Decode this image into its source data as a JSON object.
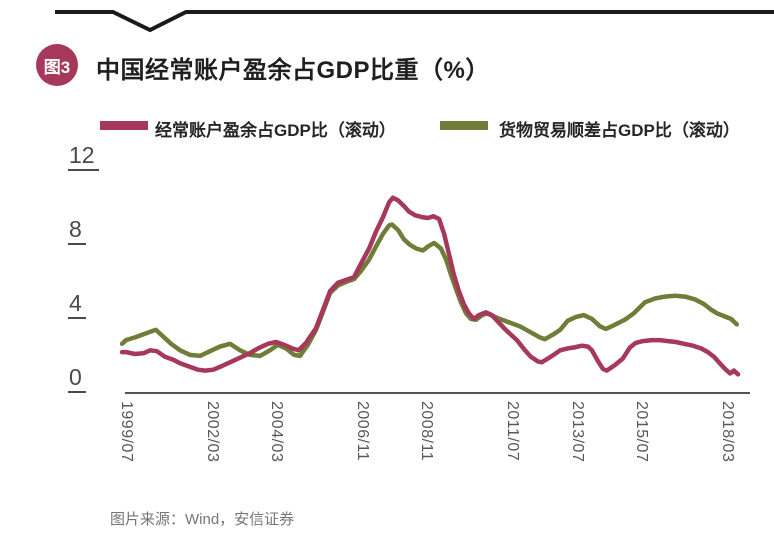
{
  "header": {
    "badge": "图3",
    "title": "中国经常账户盈余占GDP比重（%）"
  },
  "source": {
    "text": "图片来源：Wind，安信证券"
  },
  "colors": {
    "accent_crimson": "#a6395a",
    "accent_olive": "#6f7d39",
    "axis_black": "#1a1a1a",
    "tick_gray": "#4a4a4a"
  },
  "chart_data": {
    "type": "line",
    "title": "中国经常账户盈余占GDP比重（%）",
    "grid": false,
    "legend_position": "top",
    "ylim": [
      0,
      12
    ],
    "yticks": [
      0,
      4,
      8,
      12
    ],
    "xlim": [
      1999.42,
      2018.6
    ],
    "xticks": [
      {
        "label": "1999/07",
        "x": 1999.54
      },
      {
        "label": "2002/03",
        "x": 2002.21
      },
      {
        "label": "2004/03",
        "x": 2004.21
      },
      {
        "label": "2006/11",
        "x": 2006.87
      },
      {
        "label": "2008/11",
        "x": 2008.87
      },
      {
        "label": "2011/07",
        "x": 2011.54
      },
      {
        "label": "2013/07",
        "x": 2013.54
      },
      {
        "label": "2015/07",
        "x": 2015.54
      },
      {
        "label": "2018/03",
        "x": 2018.21
      }
    ],
    "series": [
      {
        "name": "经常账户盈余占GDP比（滚动）",
        "color": "#a6395a",
        "points": [
          [
            1999.42,
            2.1
          ],
          [
            1999.54,
            2.1
          ],
          [
            1999.82,
            2.0
          ],
          [
            2000.1,
            2.05
          ],
          [
            2000.29,
            2.2
          ],
          [
            2000.5,
            2.15
          ],
          [
            2000.75,
            1.85
          ],
          [
            2001.0,
            1.7
          ],
          [
            2001.22,
            1.5
          ],
          [
            2001.53,
            1.3
          ],
          [
            2001.78,
            1.15
          ],
          [
            2002.0,
            1.1
          ],
          [
            2002.25,
            1.15
          ],
          [
            2002.52,
            1.35
          ],
          [
            2002.77,
            1.55
          ],
          [
            2003.08,
            1.8
          ],
          [
            2003.39,
            2.05
          ],
          [
            2003.64,
            2.3
          ],
          [
            2003.95,
            2.55
          ],
          [
            2004.2,
            2.65
          ],
          [
            2004.45,
            2.5
          ],
          [
            2004.7,
            2.3
          ],
          [
            2004.9,
            2.2
          ],
          [
            2005.13,
            2.6
          ],
          [
            2005.44,
            3.4
          ],
          [
            2005.66,
            4.4
          ],
          [
            2005.88,
            5.4
          ],
          [
            2006.12,
            5.85
          ],
          [
            2006.37,
            6.0
          ],
          [
            2006.62,
            6.15
          ],
          [
            2006.84,
            6.9
          ],
          [
            2007.09,
            7.7
          ],
          [
            2007.3,
            8.6
          ],
          [
            2007.52,
            9.4
          ],
          [
            2007.71,
            10.2
          ],
          [
            2007.83,
            10.45
          ],
          [
            2007.99,
            10.3
          ],
          [
            2008.17,
            10.0
          ],
          [
            2008.33,
            9.7
          ],
          [
            2008.52,
            9.5
          ],
          [
            2008.73,
            9.4
          ],
          [
            2008.92,
            9.35
          ],
          [
            2009.08,
            9.45
          ],
          [
            2009.26,
            9.3
          ],
          [
            2009.42,
            8.5
          ],
          [
            2009.57,
            7.4
          ],
          [
            2009.72,
            6.3
          ],
          [
            2009.88,
            5.4
          ],
          [
            2010.03,
            4.7
          ],
          [
            2010.19,
            4.2
          ],
          [
            2010.34,
            3.9
          ],
          [
            2010.5,
            4.1
          ],
          [
            2010.72,
            4.25
          ],
          [
            2010.9,
            4.1
          ],
          [
            2011.09,
            3.75
          ],
          [
            2011.28,
            3.4
          ],
          [
            2011.46,
            3.1
          ],
          [
            2011.68,
            2.75
          ],
          [
            2011.93,
            2.2
          ],
          [
            2012.11,
            1.85
          ],
          [
            2012.33,
            1.6
          ],
          [
            2012.45,
            1.55
          ],
          [
            2012.64,
            1.75
          ],
          [
            2012.86,
            2.0
          ],
          [
            2013.02,
            2.2
          ],
          [
            2013.26,
            2.3
          ],
          [
            2013.45,
            2.35
          ],
          [
            2013.7,
            2.45
          ],
          [
            2013.89,
            2.4
          ],
          [
            2014.01,
            2.2
          ],
          [
            2014.2,
            1.6
          ],
          [
            2014.35,
            1.2
          ],
          [
            2014.47,
            1.1
          ],
          [
            2014.72,
            1.4
          ],
          [
            2014.97,
            1.75
          ],
          [
            2015.19,
            2.35
          ],
          [
            2015.37,
            2.6
          ],
          [
            2015.59,
            2.7
          ],
          [
            2015.87,
            2.75
          ],
          [
            2016.12,
            2.75
          ],
          [
            2016.37,
            2.7
          ],
          [
            2016.62,
            2.65
          ],
          [
            2016.87,
            2.55
          ],
          [
            2017.15,
            2.45
          ],
          [
            2017.4,
            2.3
          ],
          [
            2017.61,
            2.1
          ],
          [
            2017.8,
            1.85
          ],
          [
            2017.98,
            1.5
          ],
          [
            2018.17,
            1.15
          ],
          [
            2018.3,
            0.95
          ],
          [
            2018.42,
            1.1
          ],
          [
            2018.55,
            0.9
          ]
        ]
      },
      {
        "name": "货物贸易顺差占GDP比（滚动）",
        "color": "#6f7d39",
        "points": [
          [
            1999.42,
            2.55
          ],
          [
            1999.54,
            2.75
          ],
          [
            1999.82,
            2.9
          ],
          [
            2000.29,
            3.2
          ],
          [
            2000.47,
            3.3
          ],
          [
            2000.69,
            2.95
          ],
          [
            2000.94,
            2.55
          ],
          [
            2001.22,
            2.2
          ],
          [
            2001.53,
            1.95
          ],
          [
            2001.84,
            1.9
          ],
          [
            2002.15,
            2.15
          ],
          [
            2002.46,
            2.4
          ],
          [
            2002.77,
            2.55
          ],
          [
            2003.08,
            2.2
          ],
          [
            2003.39,
            1.95
          ],
          [
            2003.7,
            1.9
          ],
          [
            2004.01,
            2.2
          ],
          [
            2004.26,
            2.5
          ],
          [
            2004.51,
            2.3
          ],
          [
            2004.76,
            1.95
          ],
          [
            2004.94,
            1.9
          ],
          [
            2005.19,
            2.5
          ],
          [
            2005.44,
            3.3
          ],
          [
            2005.66,
            4.3
          ],
          [
            2005.88,
            5.3
          ],
          [
            2006.12,
            5.7
          ],
          [
            2006.37,
            5.9
          ],
          [
            2006.62,
            6.05
          ],
          [
            2006.84,
            6.5
          ],
          [
            2007.09,
            7.1
          ],
          [
            2007.3,
            7.8
          ],
          [
            2007.52,
            8.5
          ],
          [
            2007.71,
            8.95
          ],
          [
            2007.8,
            9.0
          ],
          [
            2007.99,
            8.7
          ],
          [
            2008.17,
            8.2
          ],
          [
            2008.36,
            7.9
          ],
          [
            2008.55,
            7.7
          ],
          [
            2008.76,
            7.6
          ],
          [
            2008.95,
            7.85
          ],
          [
            2009.11,
            8.0
          ],
          [
            2009.32,
            7.7
          ],
          [
            2009.48,
            7.1
          ],
          [
            2009.63,
            6.3
          ],
          [
            2009.79,
            5.5
          ],
          [
            2009.94,
            4.8
          ],
          [
            2010.1,
            4.2
          ],
          [
            2010.25,
            3.9
          ],
          [
            2010.41,
            3.85
          ],
          [
            2010.6,
            4.1
          ],
          [
            2010.75,
            4.2
          ],
          [
            2010.94,
            4.05
          ],
          [
            2011.15,
            3.9
          ],
          [
            2011.46,
            3.7
          ],
          [
            2011.77,
            3.5
          ],
          [
            2012.08,
            3.2
          ],
          [
            2012.39,
            2.9
          ],
          [
            2012.55,
            2.8
          ],
          [
            2012.8,
            3.05
          ],
          [
            2013.02,
            3.3
          ],
          [
            2013.26,
            3.8
          ],
          [
            2013.51,
            4.0
          ],
          [
            2013.76,
            4.1
          ],
          [
            2014.01,
            3.9
          ],
          [
            2014.26,
            3.5
          ],
          [
            2014.44,
            3.35
          ],
          [
            2014.69,
            3.55
          ],
          [
            2015.03,
            3.85
          ],
          [
            2015.31,
            4.2
          ],
          [
            2015.66,
            4.8
          ],
          [
            2015.97,
            5.0
          ],
          [
            2016.28,
            5.1
          ],
          [
            2016.59,
            5.15
          ],
          [
            2016.9,
            5.1
          ],
          [
            2017.21,
            4.95
          ],
          [
            2017.49,
            4.7
          ],
          [
            2017.71,
            4.4
          ],
          [
            2017.89,
            4.2
          ],
          [
            2018.11,
            4.05
          ],
          [
            2018.33,
            3.9
          ],
          [
            2018.51,
            3.6
          ]
        ]
      }
    ]
  }
}
